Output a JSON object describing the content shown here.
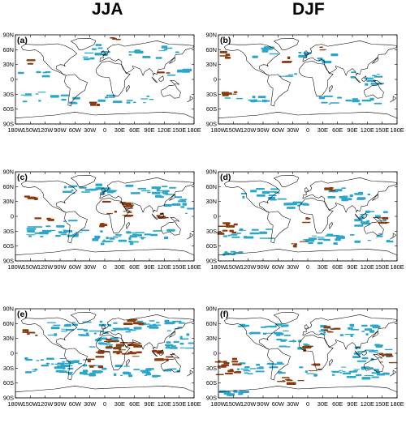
{
  "columns": [
    {
      "key": "jja",
      "title": "JJA"
    },
    {
      "key": "djf",
      "title": "DJF"
    }
  ],
  "lat_ticks": [
    "90N",
    "60N",
    "30N",
    "0",
    "30S",
    "60S",
    "90S"
  ],
  "lon_ticks": [
    "180W",
    "150W",
    "120W",
    "90W",
    "60W",
    "30W",
    "0",
    "30E",
    "60E",
    "90E",
    "120E",
    "150E",
    "180E"
  ],
  "colors": {
    "cyan": "#2aa6cc",
    "brown": "#8b3a0e",
    "coast": "#000000"
  },
  "legend": {
    "cyan": "cyan shading",
    "brown": "brown shading"
  },
  "panels": [
    {
      "label": "(a)",
      "column": "JJA",
      "row": 1,
      "cyan_density": "low",
      "brown_density": "low"
    },
    {
      "label": "(b)",
      "column": "DJF",
      "row": 1,
      "cyan_density": "low",
      "brown_density": "low"
    },
    {
      "label": "(c)",
      "column": "JJA",
      "row": 2,
      "cyan_density": "medium",
      "brown_density": "medium"
    },
    {
      "label": "(d)",
      "column": "DJF",
      "row": 2,
      "cyan_density": "medium",
      "brown_density": "medium"
    },
    {
      "label": "(e)",
      "column": "JJA",
      "row": 3,
      "cyan_density": "high",
      "brown_density": "high"
    },
    {
      "label": "(f)",
      "column": "DJF",
      "row": 3,
      "cyan_density": "high",
      "brown_density": "medium"
    }
  ]
}
